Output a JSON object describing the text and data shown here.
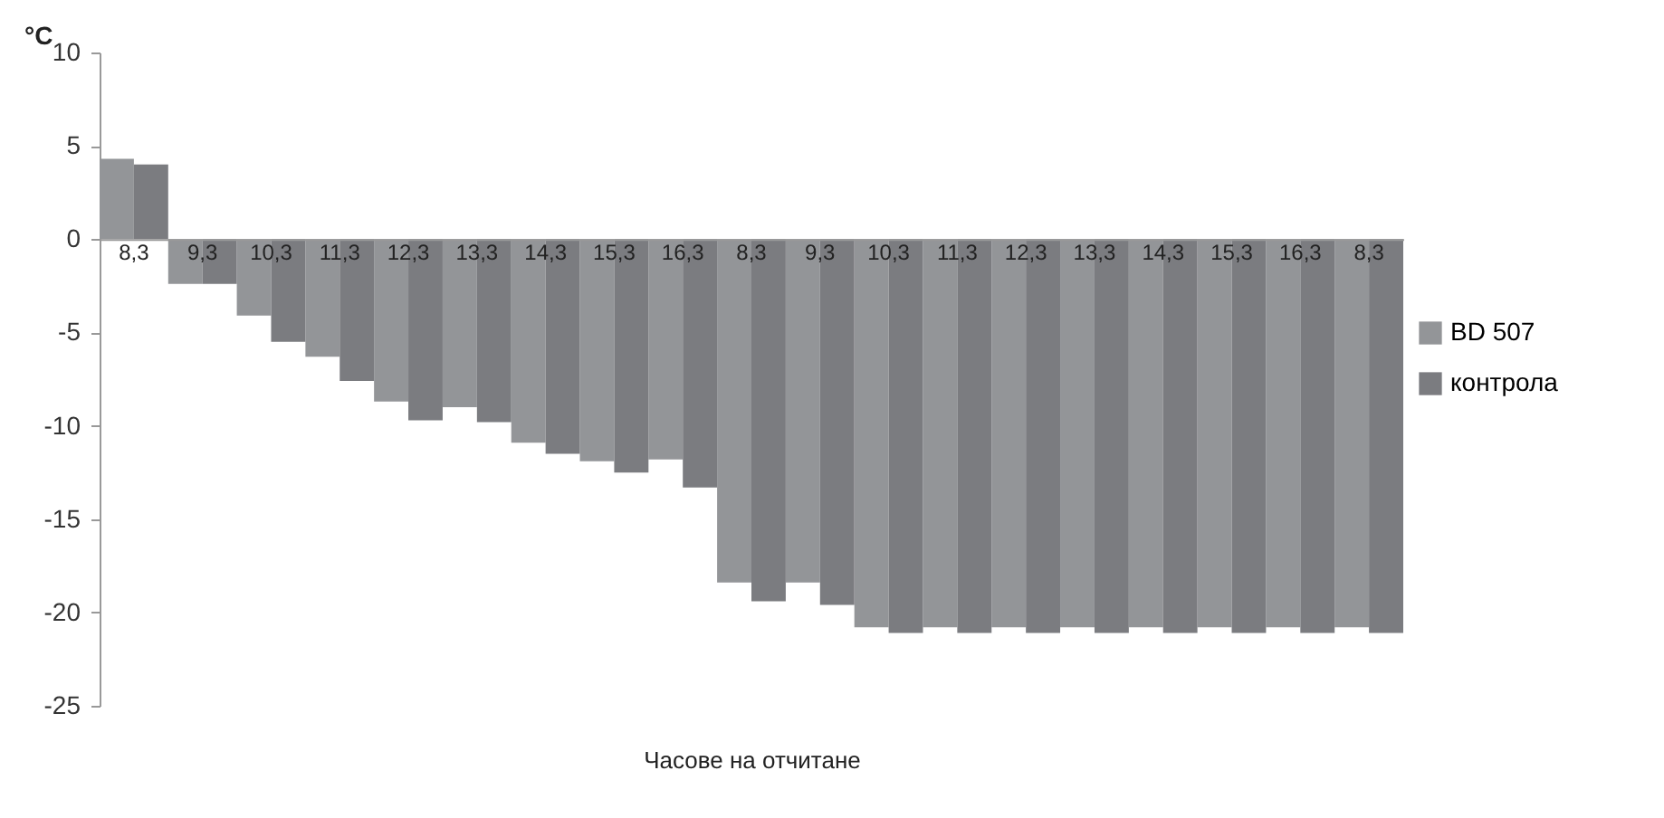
{
  "chart_data": {
    "type": "bar",
    "xlabel": "Часове на отчитане",
    "ylabel": "°C",
    "categories": [
      "8,3",
      "9,3",
      "10,3",
      "11,3",
      "12,3",
      "13,3",
      "14,3",
      "15,3",
      "16,3",
      "8,3",
      "9,3",
      "10,3",
      "11,3",
      "12,3",
      "13,3",
      "14,3",
      "15,3",
      "16,3",
      "8,3"
    ],
    "series": [
      {
        "name": "BD 507",
        "color": "#939598",
        "values": [
          4.3,
          -2.4,
          -4.1,
          -6.3,
          -8.7,
          -9.0,
          -10.9,
          -11.9,
          -11.8,
          -18.4,
          -18.4,
          -20.8,
          -20.8,
          -20.8,
          -20.8,
          -20.8,
          -20.8,
          -20.8,
          -20.8
        ]
      },
      {
        "name": "контрола",
        "color": "#7b7c80",
        "values": [
          4.0,
          -2.4,
          -5.5,
          -7.6,
          -9.7,
          -9.8,
          -11.5,
          -12.5,
          -13.3,
          -19.4,
          -19.6,
          -21.1,
          -21.1,
          -21.1,
          -21.1,
          -21.1,
          -21.1,
          -21.1,
          -21.1
        ]
      }
    ],
    "ylim": [
      -25,
      10
    ],
    "yticks": [
      -25,
      -20,
      -15,
      -10,
      -5,
      0,
      5,
      10
    ],
    "grid": false,
    "legend": "right"
  }
}
